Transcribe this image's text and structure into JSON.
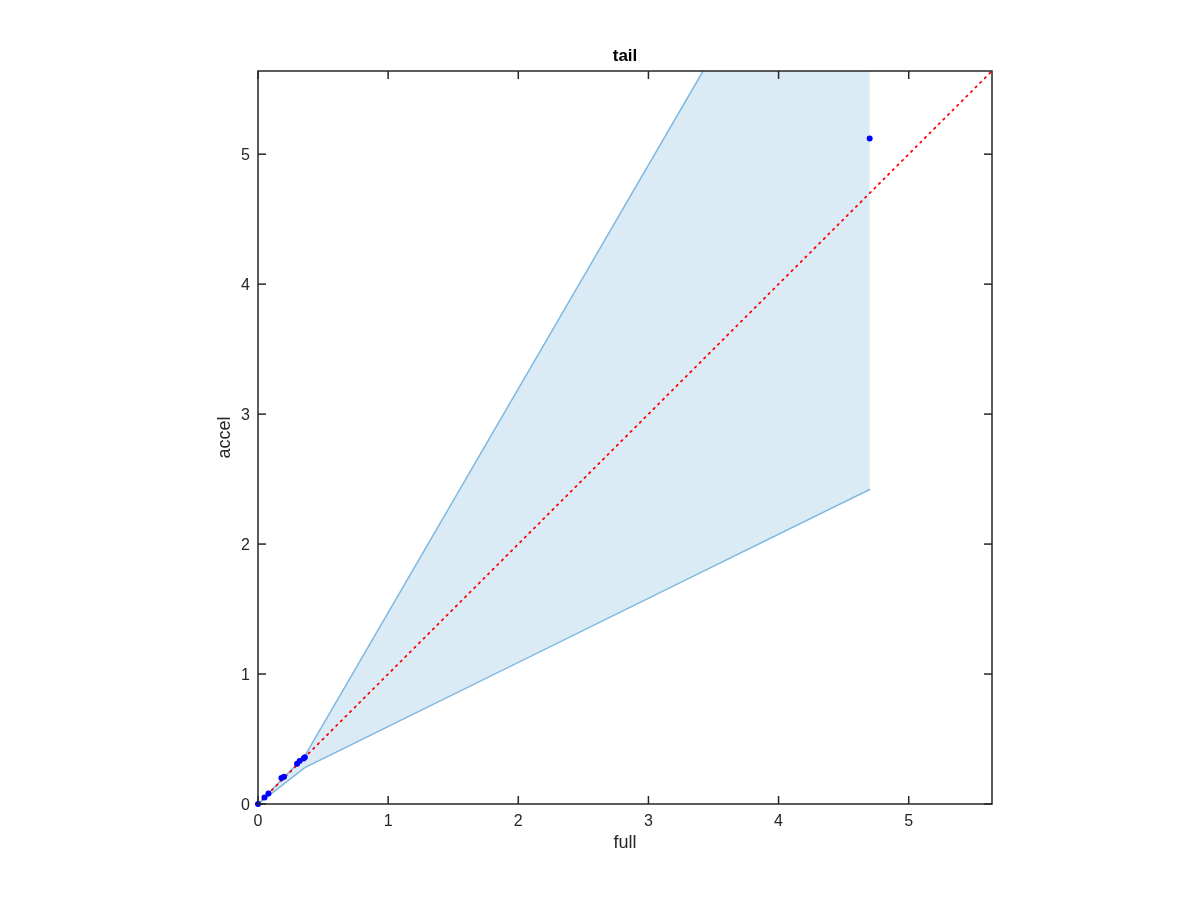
{
  "chart_data": {
    "type": "scatter",
    "title": "tail",
    "xlabel": "full",
    "ylabel": "accel",
    "xlim": [
      0,
      5.64
    ],
    "ylim": [
      0,
      5.64
    ],
    "xticks": [
      0,
      1,
      2,
      3,
      4,
      5
    ],
    "yticks": [
      0,
      1,
      2,
      3,
      4,
      5
    ],
    "grid": false,
    "legend": false,
    "series": [
      {
        "type": "line",
        "color": "#7fb8e0",
        "line_style": "solid",
        "marker": "none",
        "x": [
          0,
          0.36,
          3.42
        ],
        "values": [
          0,
          0.37,
          5.64
        ]
      },
      {
        "type": "line",
        "color": "#7fb8e0",
        "line_style": "solid",
        "marker": "none",
        "x": [
          0,
          0.36,
          3.42,
          4.7
        ],
        "values": [
          0,
          0.28,
          1.79,
          2.42
        ],
        "lower": [
          0,
          0.28,
          1.79,
          2.42
        ],
        "upper": [
          0,
          0.37,
          5.64,
          5.64
        ]
      },
      {
        "type": "line",
        "color": "#ff0000",
        "line_style": "dotted",
        "marker": "none",
        "x": [
          0,
          5.64
        ],
        "values": [
          0,
          5.64
        ]
      },
      {
        "color": "#0000ff",
        "marker": "circle",
        "x": [
          0,
          0.05,
          0.08,
          0.18,
          0.2,
          0.3,
          0.32,
          0.35,
          0.36,
          4.7
        ],
        "values": [
          0,
          0.05,
          0.08,
          0.2,
          0.21,
          0.31,
          0.33,
          0.35,
          0.36,
          5.12
        ]
      }
    ]
  }
}
